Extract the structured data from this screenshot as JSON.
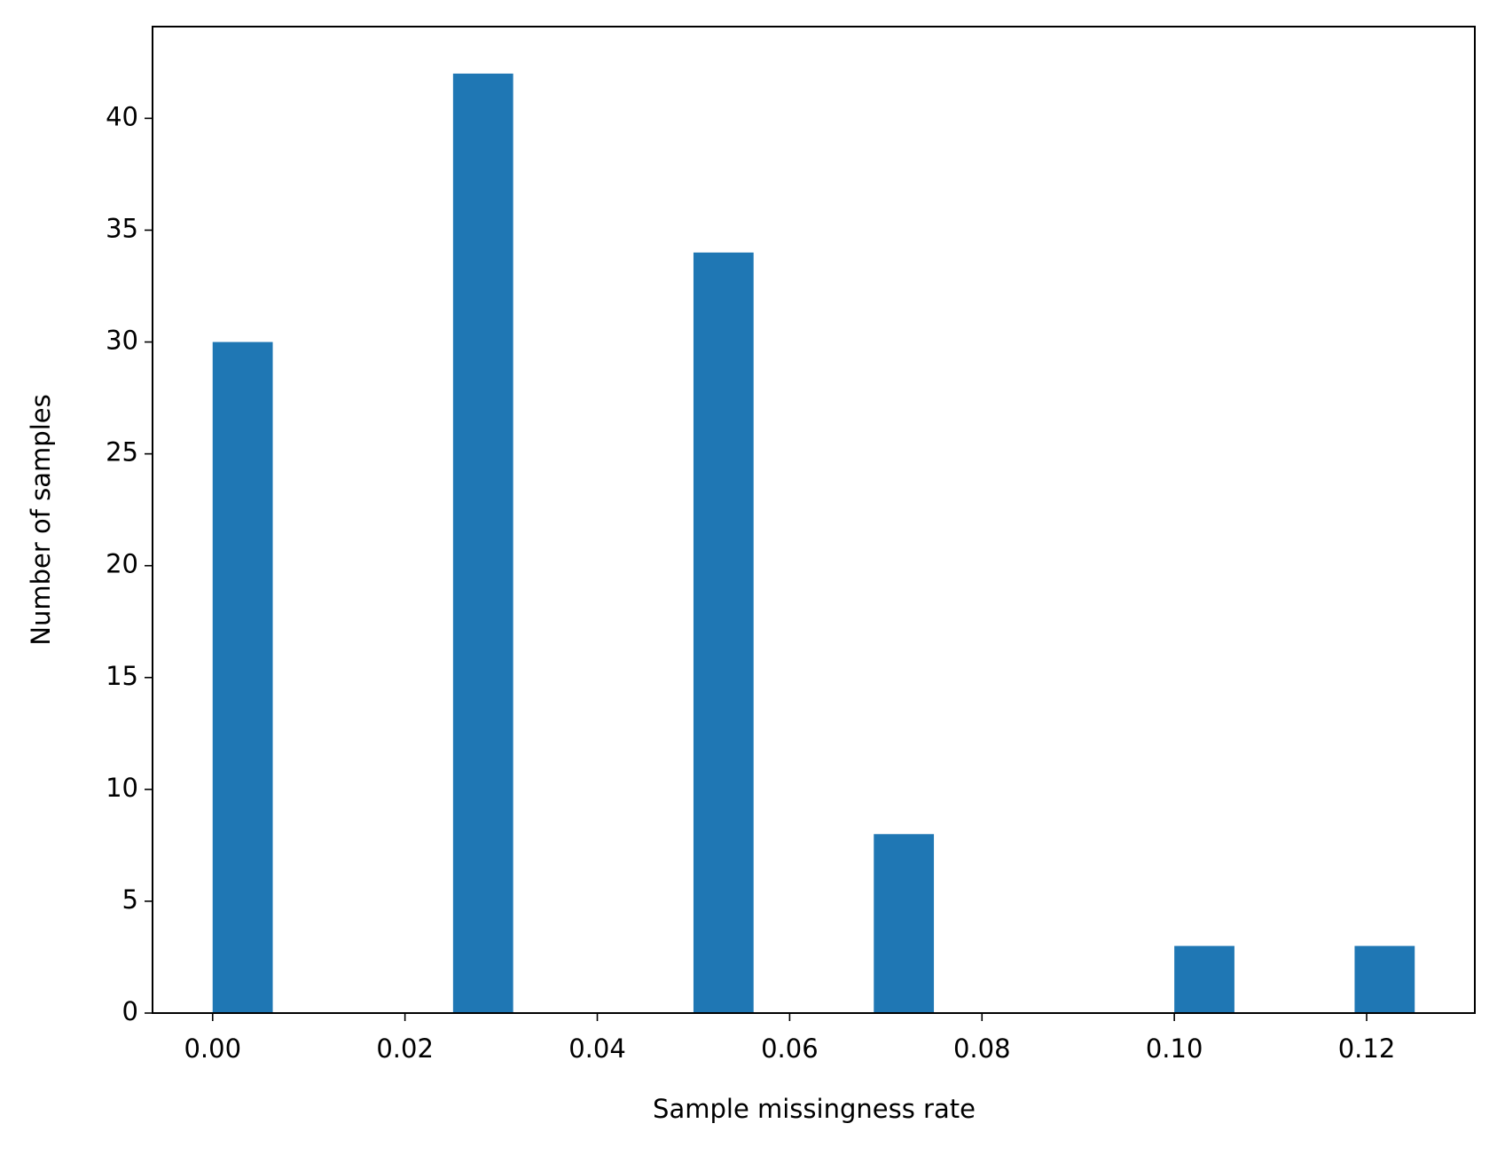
{
  "chart_data": {
    "type": "histogram",
    "x_label": "Sample missingness rate",
    "y_label": "Number of samples",
    "bins": [
      0,
      0.00625,
      0.0125,
      0.01875,
      0.025,
      0.03125,
      0.0375,
      0.04375,
      0.05,
      0.05625,
      0.0625,
      0.06875,
      0.075,
      0.08125,
      0.0875,
      0.09375,
      0.1,
      0.10625,
      0.1125,
      0.11875,
      0.125
    ],
    "counts": [
      30,
      0,
      0,
      0,
      42,
      0,
      0,
      0,
      34,
      0,
      0,
      8,
      0,
      0,
      0,
      0,
      3,
      0,
      0,
      3
    ],
    "color": "#1f77b4",
    "xlim": [
      -0.00625,
      0.13125
    ],
    "ylim": [
      0,
      44.1
    ],
    "xticks": [
      {
        "value": 0,
        "label": "0.00"
      },
      {
        "value": 0.02,
        "label": "0.02"
      },
      {
        "value": 0.04,
        "label": "0.04"
      },
      {
        "value": 0.06,
        "label": "0.06"
      },
      {
        "value": 0.08,
        "label": "0.08"
      },
      {
        "value": 0.1,
        "label": "0.10"
      },
      {
        "value": 0.12,
        "label": "0.12"
      }
    ],
    "yticks": [
      0,
      5,
      10,
      15,
      20,
      25,
      30,
      35,
      40
    ],
    "grid": false
  }
}
